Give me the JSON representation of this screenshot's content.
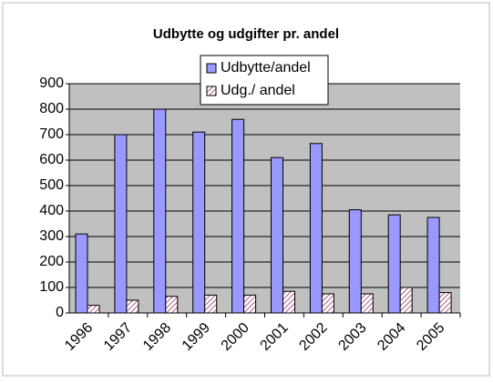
{
  "chart_data": {
    "type": "bar",
    "title": "Udbytte og udgifter pr. andel",
    "categories": [
      "1996",
      "1997",
      "1998",
      "1999",
      "2000",
      "2001",
      "2002",
      "2003",
      "2004",
      "2005"
    ],
    "series": [
      {
        "name": "Udbytte/andel",
        "color": "#9999ff",
        "values": [
          310,
          700,
          800,
          710,
          760,
          610,
          665,
          405,
          385,
          375
        ]
      },
      {
        "name": "Udg./ andel",
        "color": "#993366",
        "pattern": "diagonal",
        "values": [
          30,
          50,
          65,
          70,
          70,
          85,
          75,
          75,
          100,
          80
        ]
      }
    ],
    "ylim": [
      0,
      900
    ],
    "yticks": [
      0,
      100,
      200,
      300,
      400,
      500,
      600,
      700,
      800,
      900
    ],
    "grid": true,
    "legend": "top",
    "background": "#c0c0c0"
  }
}
